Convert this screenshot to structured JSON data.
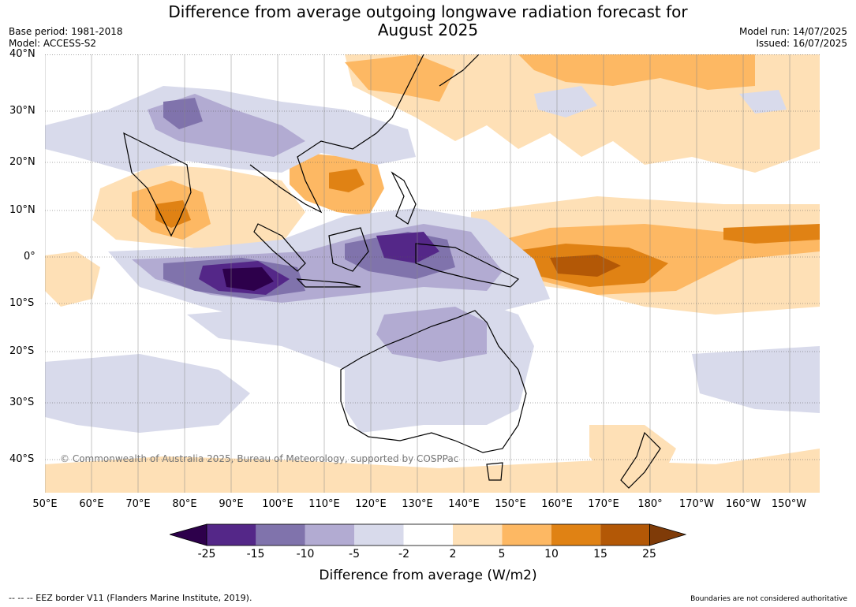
{
  "title_line1": "Difference from average outgoing longwave radiation forecast for",
  "title_line2": "August 2025",
  "base_period": "Base period: 1981-2018",
  "model": "Model: ACCESS-S2",
  "model_run": "Model run: 14/07/2025",
  "issued": "Issued: 16/07/2025",
  "lat_labels": [
    "40°N",
    "30°N",
    "20°N",
    "10°N",
    "0°",
    "10°S",
    "20°S",
    "30°S",
    "40°S"
  ],
  "lon_labels": [
    "50°E",
    "60°E",
    "70°E",
    "80°E",
    "90°E",
    "100°E",
    "110°E",
    "120°E",
    "130°E",
    "140°E",
    "150°E",
    "160°E",
    "170°E",
    "180°",
    "170°W",
    "160°W",
    "150°W"
  ],
  "copyright": "© Commonwealth of Australia 2025, Bureau of Meteorology, supported by COSPPac",
  "colorbar": {
    "labels": [
      "-25",
      "-15",
      "-10",
      "-5",
      "-2",
      "2",
      "5",
      "10",
      "15",
      "25"
    ],
    "colors": [
      "#2d004b",
      "#542788",
      "#8073ac",
      "#b2abd2",
      "#d8daeb",
      "#ffffff",
      "#fee0b6",
      "#fdb863",
      "#e08214",
      "#b35806",
      "#7f3b08"
    ],
    "title": "Difference from average (W/m2)"
  },
  "eez_legend": "--  --  -- EEZ border V11 (Flanders Marine Institute, 2019).",
  "boundaries_note": "Boundaries are not considered authoritative"
}
